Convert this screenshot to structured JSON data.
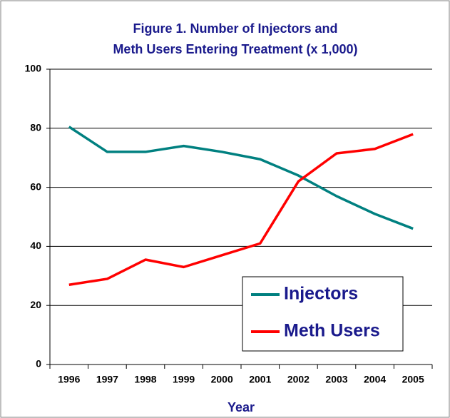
{
  "chart_data": {
    "type": "line",
    "title": [
      "Figure 1. Number of Injectors and",
      "Meth Users Entering Treatment (x 1,000)"
    ],
    "xlabel": "Year",
    "categories": [
      "1996",
      "1997",
      "1998",
      "1999",
      "2000",
      "2001",
      "2002",
      "2003",
      "2004",
      "2005"
    ],
    "series": [
      {
        "name": "Injectors",
        "color": "#008080",
        "values": [
          80.5,
          72,
          72,
          74,
          72,
          69.5,
          64,
          57,
          51,
          46
        ]
      },
      {
        "name": "Meth Users",
        "color": "#ff0000",
        "values": [
          27,
          29,
          35.5,
          33,
          37,
          41,
          62,
          71.5,
          73,
          78
        ]
      }
    ],
    "ylim": [
      0,
      100
    ],
    "yticks": [
      0,
      20,
      40,
      60,
      80,
      100
    ],
    "grid": true,
    "legend": "lower right"
  }
}
